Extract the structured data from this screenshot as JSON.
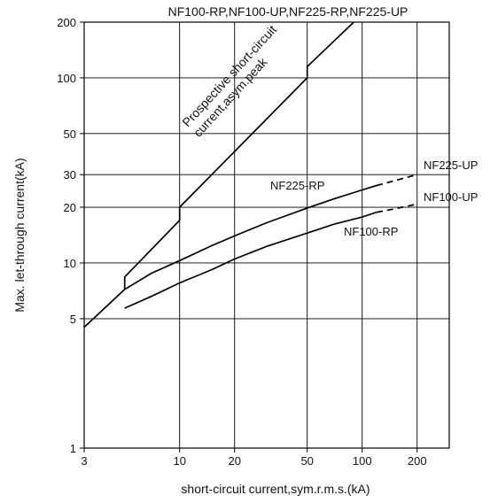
{
  "chart_data": {
    "type": "line",
    "title": "NF100-RP,NF100-UP,NF225-RP,NF225-UP",
    "xlabel": "short-circuit current,sym.r.m.s.(kA)",
    "ylabel": "Max. let-through current(kA)",
    "x_scale": "log",
    "y_scale": "log",
    "xlim": [
      3,
      300
    ],
    "ylim": [
      1,
      200
    ],
    "x_ticks": [
      3,
      10,
      20,
      50,
      100,
      200
    ],
    "y_ticks": [
      1,
      5,
      10,
      20,
      30,
      50,
      100,
      200
    ],
    "x_tick_labels": [
      "3",
      "10",
      "20",
      "50",
      "100",
      "200"
    ],
    "y_tick_labels": [
      "1",
      "5",
      "10",
      "20",
      "30",
      "50",
      "100",
      "200"
    ],
    "grid": true,
    "series": [
      {
        "name": "Prospective short-circuit current,asym.peak",
        "label_lines": [
          "Prospective short-circuit",
          "current,asym.peak"
        ],
        "points": [
          [
            3,
            4.5
          ],
          [
            5,
            7.2
          ],
          [
            5,
            8.4
          ],
          [
            10,
            17
          ],
          [
            10,
            20
          ],
          [
            20,
            40
          ],
          [
            50,
            100
          ],
          [
            50,
            115
          ],
          [
            90,
            200
          ]
        ]
      },
      {
        "name": "NF225-RP",
        "points": [
          [
            5,
            7.2
          ],
          [
            7,
            8.8
          ],
          [
            10,
            10.3
          ],
          [
            15,
            12.4
          ],
          [
            20,
            14
          ],
          [
            30,
            16.5
          ],
          [
            50,
            19.8
          ],
          [
            70,
            22.2
          ],
          [
            100,
            24.8
          ],
          [
            120,
            26.2
          ]
        ]
      },
      {
        "name": "NF225-UP",
        "points": [
          [
            120,
            26.2
          ],
          [
            150,
            27.8
          ],
          [
            200,
            30
          ]
        ]
      },
      {
        "name": "NF100-RP",
        "points": [
          [
            5,
            5.7
          ],
          [
            7,
            6.6
          ],
          [
            10,
            7.8
          ],
          [
            15,
            9.2
          ],
          [
            20,
            10.5
          ],
          [
            30,
            12.3
          ],
          [
            50,
            14.5
          ],
          [
            70,
            16.2
          ],
          [
            100,
            17.7
          ],
          [
            120,
            18.8
          ]
        ]
      },
      {
        "name": "NF100-UP",
        "points": [
          [
            120,
            18.8
          ],
          [
            150,
            19.6
          ],
          [
            200,
            20.8
          ]
        ]
      }
    ]
  }
}
